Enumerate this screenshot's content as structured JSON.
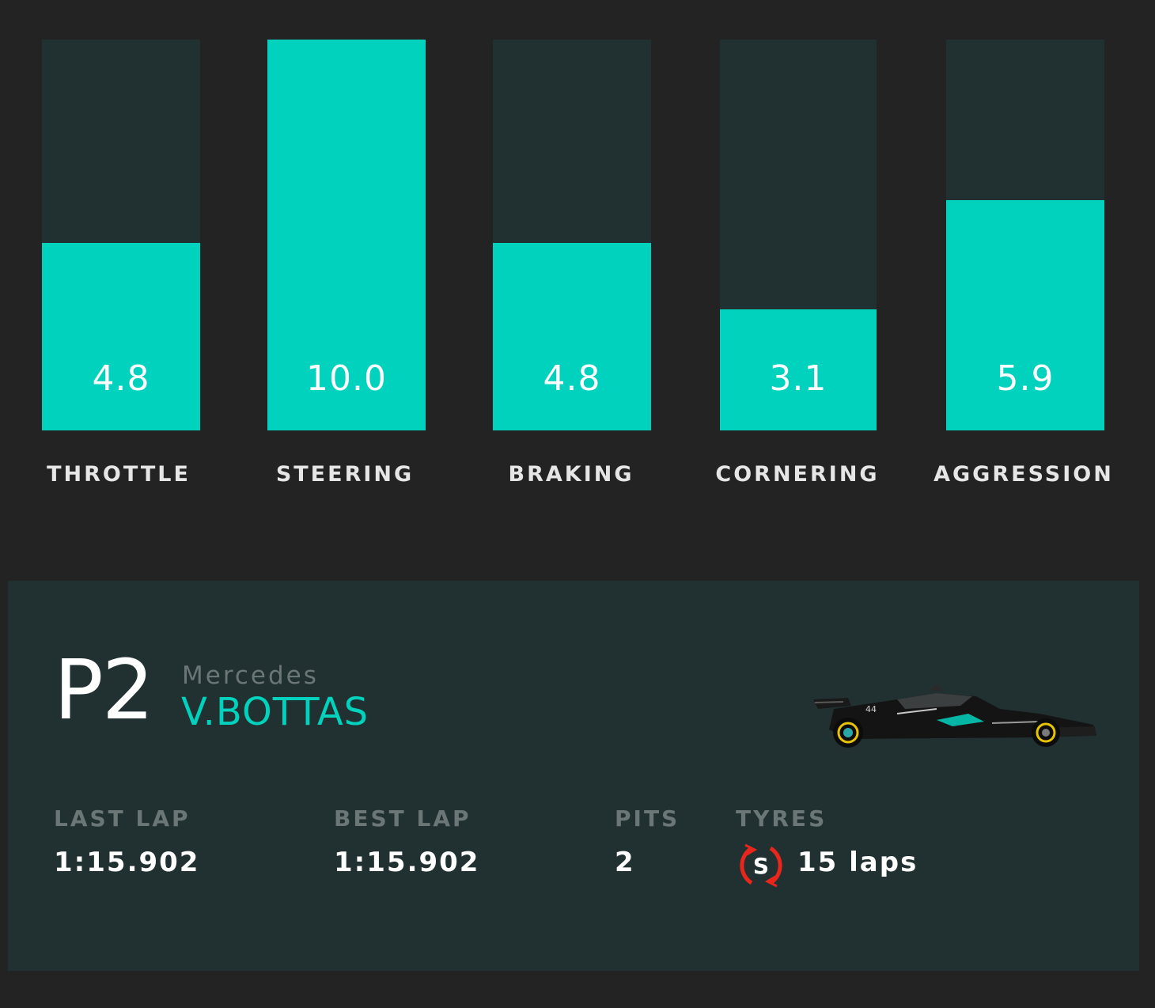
{
  "chart_data": {
    "type": "bar",
    "categories": [
      "THROTTLE",
      "STEERING",
      "BRAKING",
      "CORNERING",
      "AGGRESSION"
    ],
    "values": [
      4.8,
      10.0,
      4.8,
      3.1,
      5.9
    ],
    "value_labels": [
      "4.8",
      "10.0",
      "4.8",
      "3.1",
      "5.9"
    ],
    "ylim": [
      0,
      10
    ],
    "grid": false,
    "colors": {
      "fill": "#00d2be",
      "track": "#213132"
    }
  },
  "driver": {
    "position": "P2",
    "team": "Mercedes",
    "name": "V.BOTTAS"
  },
  "stats": {
    "last_lap_label": "LAST LAP",
    "last_lap_value": "1:15.902",
    "best_lap_label": "BEST LAP",
    "best_lap_value": "1:15.902",
    "pits_label": "PITS",
    "pits_value": "2",
    "tyres_label": "TYRES",
    "tyre_compound": "S",
    "tyre_laps": "15 laps"
  },
  "icons": {
    "car": "f1-car-image",
    "tyre": "soft-tyre-icon"
  },
  "colors": {
    "background": "#232323",
    "panel": "#213132",
    "accent": "#00d2be",
    "tyre_soft": "#e8261c",
    "muted_text": "#6b7676"
  }
}
